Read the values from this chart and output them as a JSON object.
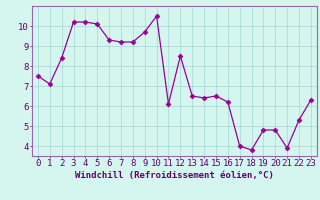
{
  "y_vals": [
    7.5,
    7.1,
    8.4,
    10.2,
    10.2,
    10.1,
    9.3,
    9.2,
    9.2,
    9.7,
    10.5,
    6.1,
    8.5,
    6.5,
    6.4,
    6.5,
    6.2,
    4.0,
    3.8,
    4.8,
    4.8,
    3.9,
    5.3,
    6.3
  ],
  "line_color": "#990099",
  "marker": "D",
  "marker_size": 2.5,
  "bg_color": "#d5f5ef",
  "grid_color": "#aaddda",
  "xlabel": "Windchill (Refroidissement éolien,°C)",
  "ylim": [
    3.5,
    11.0
  ],
  "yticks": [
    4,
    5,
    6,
    7,
    8,
    9,
    10
  ],
  "xticks": [
    0,
    1,
    2,
    3,
    4,
    5,
    6,
    7,
    8,
    9,
    10,
    11,
    12,
    13,
    14,
    15,
    16,
    17,
    18,
    19,
    20,
    21,
    22,
    23
  ],
  "xlabel_fontsize": 6.5,
  "tick_fontsize": 6.5,
  "label_color": "#660066",
  "spine_color": "#9966aa"
}
